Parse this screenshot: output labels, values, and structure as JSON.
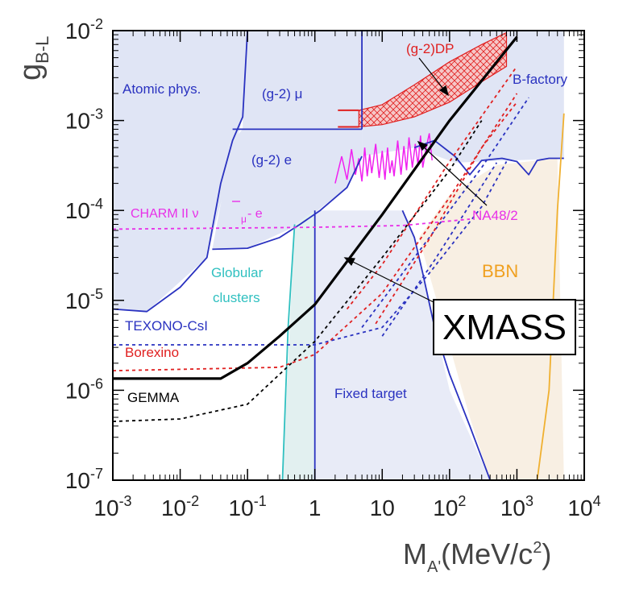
{
  "chart_data": {
    "type": "line",
    "xscale": "log",
    "yscale": "log",
    "xlim": [
      0.001,
      10000
    ],
    "ylim": [
      1e-07,
      0.01
    ],
    "ylabel": {
      "main": "g",
      "sub": "B-L"
    },
    "xlabel": {
      "main": "M",
      "sub": "A'",
      "unit": "(MeV/c",
      "sup": "2",
      "close": ")"
    },
    "xticks": [
      {
        "value": 0.001,
        "base": "10",
        "exp": "-3"
      },
      {
        "value": 0.01,
        "base": "10",
        "exp": "-2"
      },
      {
        "value": 0.1,
        "base": "10",
        "exp": "-1"
      },
      {
        "value": 1,
        "base": "1",
        "exp": ""
      },
      {
        "value": 10,
        "base": "10",
        "exp": ""
      },
      {
        "value": 100,
        "base": "10",
        "exp": "2"
      },
      {
        "value": 1000,
        "base": "10",
        "exp": "3"
      },
      {
        "value": 10000,
        "base": "10",
        "exp": "4"
      }
    ],
    "yticks": [
      {
        "value": 0.01,
        "base": "10",
        "exp": "-2"
      },
      {
        "value": 0.001,
        "base": "10",
        "exp": "-3"
      },
      {
        "value": 0.0001,
        "base": "10",
        "exp": "-4"
      },
      {
        "value": 1e-05,
        "base": "10",
        "exp": "-5"
      },
      {
        "value": 1e-06,
        "base": "10",
        "exp": "-6"
      },
      {
        "value": 1e-07,
        "base": "10",
        "exp": "-7"
      }
    ],
    "regions": [
      {
        "name": "Atomic phys.",
        "color": "#e0e5f5",
        "polygon": [
          [
            0.001,
            8e-06
          ],
          [
            0.0032,
            7.5e-06
          ],
          [
            0.025,
            3e-05
          ],
          [
            0.085,
            0.0011
          ],
          [
            0.1,
            0.01
          ],
          [
            0.001,
            0.01
          ]
        ]
      },
      {
        "name": "(g-2) mu",
        "color": "#e0e5f5",
        "polygon": [
          [
            0.085,
            0.0011
          ],
          [
            0.1,
            0.01
          ],
          [
            5,
            0.01
          ],
          [
            5,
            0.0008
          ],
          [
            0.085,
            0.0008
          ]
        ]
      },
      {
        "name": "(g-2) e",
        "color": "#e0e5f5",
        "polygon": [
          [
            0.03,
            3.7e-05
          ],
          [
            0.1,
            3.8e-05
          ],
          [
            0.6,
            7e-05
          ],
          [
            3,
            0.00018
          ],
          [
            5,
            0.0004
          ],
          [
            5,
            0.0008
          ],
          [
            0.085,
            0.0008
          ],
          [
            0.06,
            0.0006
          ]
        ]
      },
      {
        "name": "B-factory",
        "color": "#e0e5f5",
        "polygon": [
          [
            5,
            0.01
          ],
          [
            5000.0,
            0.01
          ],
          [
            5000.0,
            0.00038
          ],
          [
            120,
            0.00034
          ],
          [
            30,
            0.0005
          ],
          [
            5,
            0.0004
          ]
        ]
      },
      {
        "name": "Globular clusters",
        "color": "#e2f0f0",
        "polygon": [
          [
            0.33,
            1e-07
          ],
          [
            0.5,
            7e-05
          ],
          [
            1,
            0.0001
          ],
          [
            1,
            1e-07
          ]
        ]
      },
      {
        "name": "BBN",
        "color": "#f8efe3",
        "polygon": [
          [
            0.33,
            1e-07
          ],
          [
            1,
            1e-07
          ],
          [
            400,
            1e-07
          ],
          [
            200,
            5e-07
          ],
          [
            35,
            5e-05
          ],
          [
            100,
            0.00015
          ],
          [
            500,
            0.00032
          ],
          [
            4000,
            0.00038
          ],
          [
            5000,
            1e-07
          ]
        ]
      },
      {
        "name": "Fixed target",
        "color": "#e8ebf7",
        "polygon": [
          [
            1,
            1e-07
          ],
          [
            1,
            0.0001
          ],
          [
            20,
            0.0001
          ],
          [
            30,
            5e-05
          ],
          [
            100,
            1e-06
          ],
          [
            400,
            1e-07
          ]
        ]
      }
    ],
    "series": [
      {
        "name": "Atomic phys.",
        "color": "#2a32c0",
        "width": 1.8,
        "dash": "",
        "points": [
          [
            0.001,
            8e-06
          ],
          [
            0.0032,
            7.5e-06
          ],
          [
            0.01,
            1.4e-05
          ],
          [
            0.025,
            3e-05
          ],
          [
            0.04,
            0.0002
          ],
          [
            0.06,
            0.0006
          ],
          [
            0.085,
            0.0011
          ],
          [
            0.1,
            0.01
          ]
        ]
      },
      {
        "name": "(g-2) mu",
        "color": "#2a32c0",
        "width": 1.8,
        "dash": "",
        "points": [
          [
            0.06,
            0.0008
          ],
          [
            5,
            0.0008
          ]
        ]
      },
      {
        "name": "(g-2) e",
        "color": "#2a32c0",
        "width": 1.8,
        "dash": "",
        "points": [
          [
            0.03,
            3.7e-05
          ],
          [
            0.1,
            3.8e-05
          ],
          [
            0.3,
            5e-05
          ],
          [
            0.6,
            7e-05
          ],
          [
            1.2,
            0.0001
          ],
          [
            3,
            0.00018
          ],
          [
            5,
            0.0004
          ]
        ]
      },
      {
        "name": "(g-2)mu vertical",
        "color": "#2a32c0",
        "width": 1.8,
        "dash": "",
        "points": [
          [
            5,
            0.0008
          ],
          [
            5,
            0.01
          ]
        ]
      },
      {
        "name": "B-factory",
        "color": "#2a32c0",
        "width": 1.8,
        "dash": "",
        "points": [
          [
            30,
            0.0005
          ],
          [
            60,
            0.0006
          ],
          [
            120,
            0.0004
          ],
          [
            200,
            0.00025
          ],
          [
            300,
            0.00036
          ],
          [
            600,
            0.00038
          ],
          [
            1000,
            0.00035
          ],
          [
            1500,
            0.00025
          ],
          [
            2000,
            0.00036
          ],
          [
            3000,
            0.00038
          ],
          [
            5000,
            0.00038
          ]
        ]
      },
      {
        "name": "Fixed target",
        "color": "#2a32c0",
        "width": 1.8,
        "dash": "",
        "points": [
          [
            1,
            1e-07
          ],
          [
            1,
            0.0001
          ]
        ]
      },
      {
        "name": "Fixed target edge",
        "color": "#2a32c0",
        "width": 1.8,
        "dash": "",
        "points": [
          [
            20,
            0.0001
          ],
          [
            30,
            5e-05
          ],
          [
            40,
            2e-05
          ],
          [
            60,
            5e-06
          ],
          [
            100,
            1.5e-06
          ],
          [
            200,
            4e-07
          ],
          [
            400,
            1e-07
          ]
        ]
      },
      {
        "name": "Globular clusters",
        "color": "#30c0c0",
        "width": 1.8,
        "dash": "",
        "points": [
          [
            0.33,
            1e-07
          ],
          [
            0.4,
            5e-06
          ],
          [
            0.5,
            7e-05
          ]
        ]
      },
      {
        "name": "BBN",
        "color": "#f0b030",
        "width": 1.8,
        "dash": "",
        "points": [
          [
            2000,
            1e-07
          ],
          [
            3000,
            1e-06
          ],
          [
            4000,
            0.0001
          ],
          [
            5000,
            0.0012
          ]
        ]
      },
      {
        "name": "CHARM II",
        "color": "#e830e8",
        "width": 1.8,
        "dash": "4,4",
        "points": [
          [
            0.001,
            6.2e-05
          ],
          [
            1,
            6.5e-05
          ],
          [
            20,
            6.8e-05
          ],
          [
            200,
            8e-05
          ]
        ]
      },
      {
        "name": "TEXONO-CsI",
        "color": "#2a32c0",
        "width": 1.8,
        "dash": "4,4",
        "points": [
          [
            0.001,
            3.2e-06
          ],
          [
            1,
            3.2e-06
          ],
          [
            10,
            5e-06
          ],
          [
            50,
            2e-05
          ],
          [
            300,
            0.00011
          ],
          [
            700,
            0.00035
          ]
        ]
      },
      {
        "name": "Borexino",
        "color": "#e02020",
        "width": 1.8,
        "dash": "4,4",
        "points": [
          [
            0.001,
            1.65e-06
          ],
          [
            0.3,
            1.8e-06
          ],
          [
            1,
            2.5e-06
          ],
          [
            10,
            1.2e-05
          ],
          [
            100,
            0.00014
          ],
          [
            1000,
            0.002
          ]
        ]
      },
      {
        "name": "GEMMA",
        "color": "#000000",
        "width": 1.8,
        "dash": "4,4",
        "points": [
          [
            0.001,
            4.5e-07
          ],
          [
            0.01,
            4.8e-07
          ],
          [
            0.1,
            7e-07
          ],
          [
            1,
            3.5e-06
          ],
          [
            10,
            3e-05
          ],
          [
            100,
            0.00028
          ],
          [
            300,
            0.001
          ]
        ]
      },
      {
        "name": "XMASS dashed red",
        "color": "#e02020",
        "width": 1.8,
        "dash": "4,4",
        "points": [
          [
            3,
            8e-06
          ],
          [
            10,
            2.5e-05
          ],
          [
            100,
            0.00035
          ],
          [
            1000,
            0.004
          ]
        ]
      },
      {
        "name": "XMASS dashed blue",
        "color": "#2a32c0",
        "width": 1.8,
        "dash": "4,4",
        "points": [
          [
            5,
            5e-06
          ],
          [
            30,
            3e-05
          ],
          [
            300,
            0.0003
          ],
          [
            1500,
            0.0018
          ]
        ]
      },
      {
        "name": "XMASS dashed blue 2",
        "color": "#2a32c0",
        "width": 1.8,
        "dash": "4,4",
        "points": [
          [
            10,
            4e-06
          ],
          [
            60,
            2.8e-05
          ],
          [
            500,
            0.00034
          ]
        ]
      },
      {
        "name": "XMASS dashed red 2",
        "color": "#e02020",
        "width": 1.8,
        "dash": "4,4",
        "points": [
          [
            8,
            5.5e-06
          ],
          [
            50,
            4.8e-05
          ],
          [
            300,
            0.0005
          ],
          [
            1000,
            0.0016
          ]
        ]
      },
      {
        "name": "XMASS",
        "color": "#000000",
        "width": 3.2,
        "dash": "",
        "points": [
          [
            0.001,
            1.35e-06
          ],
          [
            0.04,
            1.35e-06
          ],
          [
            0.1,
            2e-06
          ],
          [
            0.3,
            4e-06
          ],
          [
            1,
            9e-06
          ],
          [
            10,
            9e-05
          ],
          [
            100,
            0.001
          ],
          [
            1000,
            0.0085
          ]
        ]
      }
    ],
    "na48_band": {
      "name": "NA48/2",
      "color": "#f020f0",
      "points": [
        [
          2,
          0.0002
        ],
        [
          2.5,
          0.0004
        ],
        [
          3,
          0.00022
        ],
        [
          3.5,
          0.00048
        ],
        [
          4,
          0.00025
        ],
        [
          4.5,
          0.00038
        ],
        [
          5,
          0.00021
        ],
        [
          5.5,
          0.0005
        ],
        [
          6,
          0.00024
        ],
        [
          6.5,
          0.00042
        ],
        [
          7,
          0.00026
        ],
        [
          8,
          0.00055
        ],
        [
          9,
          0.00023
        ],
        [
          10,
          0.00046
        ],
        [
          11,
          0.00022
        ],
        [
          12,
          0.0005
        ],
        [
          13,
          0.00026
        ],
        [
          14,
          0.00036
        ],
        [
          15,
          0.00024
        ],
        [
          17,
          0.0006
        ],
        [
          19,
          0.00025
        ],
        [
          21,
          0.00052
        ],
        [
          23,
          0.00028
        ],
        [
          25,
          0.00065
        ],
        [
          28,
          0.0003
        ],
        [
          31,
          0.00055
        ],
        [
          34,
          0.00032
        ],
        [
          37,
          0.00068
        ],
        [
          40,
          0.0003
        ],
        [
          45,
          0.0005
        ],
        [
          50,
          0.00072
        ],
        [
          55,
          0.00036
        ]
      ]
    },
    "g2dp_band": {
      "name": "(g-2)DP",
      "color": "#e02020",
      "fill": "#f6c7c7",
      "upper": [
        [
          4.5,
          0.0013
        ],
        [
          10,
          0.0015
        ],
        [
          30,
          0.0025
        ],
        [
          100,
          0.0045
        ],
        [
          300,
          0.007
        ],
        [
          700,
          0.0095
        ]
      ],
      "lower": [
        [
          4.5,
          0.00085
        ],
        [
          10,
          0.0009
        ],
        [
          30,
          0.0011
        ],
        [
          100,
          0.0016
        ],
        [
          300,
          0.0027
        ],
        [
          700,
          0.004
        ]
      ]
    },
    "annotations": [
      {
        "text": "Atomic phys.",
        "color": "#2a32c0"
      },
      {
        "text": "(g-2) μ",
        "color": "#2a32c0"
      },
      {
        "text": "(g-2) e",
        "color": "#2a32c0"
      },
      {
        "text": "(g-2)DP",
        "color": "#e02020"
      },
      {
        "text": "B-factory",
        "color": "#2a32c0"
      },
      {
        "text": "NA48/2",
        "color": "#e830e8"
      },
      {
        "text": "CHARM II ν",
        "color": "#e830e8"
      },
      {
        "text": "μ",
        "color": "#e830e8"
      },
      {
        "text": " - e",
        "color": "#e830e8"
      },
      {
        "text": "Globular",
        "color": "#30c0c0"
      },
      {
        "text": "clusters",
        "color": "#30c0c0"
      },
      {
        "text": "BBN",
        "color": "#f0a020"
      },
      {
        "text": "TEXONO-CsI",
        "color": "#2a32c0"
      },
      {
        "text": "Borexino",
        "color": "#e02020"
      },
      {
        "text": "GEMMA",
        "color": "#000000"
      },
      {
        "text": "Fixed target",
        "color": "#2a32c0"
      },
      {
        "text": "XMASS",
        "color": "#000000"
      }
    ]
  }
}
